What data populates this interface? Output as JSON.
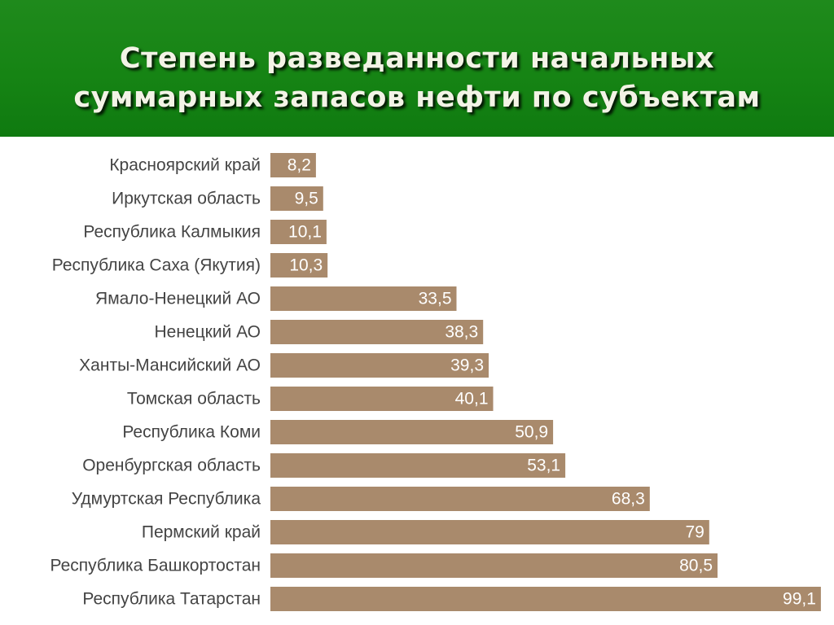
{
  "slide": {
    "title_line1": "Степень разведанности начальных",
    "title_line2": "суммарных запасов нефти по субъектам"
  },
  "colors": {
    "header_green": "#168414",
    "bar_brown": "#a98a6c",
    "bar_text": "#ffffff",
    "label_text": "#444444"
  },
  "chart_data": {
    "type": "bar",
    "orientation": "horizontal",
    "title": "Степень разведанности начальных суммарных запасов нефти по субъектам",
    "xlim": [
      0,
      100
    ],
    "grid": false,
    "legend": false,
    "categories": [
      "Красноярский край",
      "Иркутская область",
      "Республика Калмыкия",
      "Республика Саха (Якутия)",
      "Ямало-Ненецкий АО",
      "Ненецкий АО",
      "Ханты-Мансийский АО",
      "Томская область",
      "Республика Коми",
      "Оренбургская область",
      "Удмуртская Республика",
      "Пермский край",
      "Республика Башкортостан",
      "Республика Татарстан"
    ],
    "values": [
      8.2,
      9.5,
      10.1,
      10.3,
      33.5,
      38.3,
      39.3,
      40.1,
      50.9,
      53.1,
      68.3,
      79,
      80.5,
      99.1
    ],
    "data_labels": [
      "8,2",
      "9,5",
      "10,1",
      "10,3",
      "33,5",
      "38,3",
      "39,3",
      "40,1",
      "50,9",
      "53,1",
      "68,3",
      "79",
      "80,5",
      "99,1"
    ]
  }
}
